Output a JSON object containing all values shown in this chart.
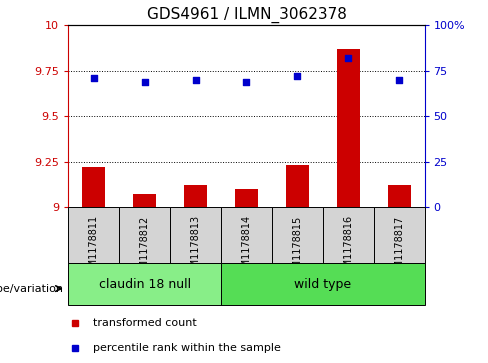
{
  "title": "GDS4961 / ILMN_3062378",
  "samples": [
    "GSM1178811",
    "GSM1178812",
    "GSM1178813",
    "GSM1178814",
    "GSM1178815",
    "GSM1178816",
    "GSM1178817"
  ],
  "transformed_count": [
    9.22,
    9.07,
    9.12,
    9.1,
    9.23,
    9.87,
    9.12
  ],
  "percentile_rank": [
    71,
    69,
    70,
    69,
    72,
    82,
    70
  ],
  "ylim_left": [
    9.0,
    10.0
  ],
  "ylim_right": [
    0,
    100
  ],
  "yticks_left": [
    9.0,
    9.25,
    9.5,
    9.75,
    10.0
  ],
  "yticks_right": [
    0,
    25,
    50,
    75,
    100
  ],
  "ytick_labels_left": [
    "9",
    "9.25",
    "9.5",
    "9.75",
    "10"
  ],
  "ytick_labels_right": [
    "0",
    "25",
    "50",
    "75",
    "100%"
  ],
  "hlines": [
    9.25,
    9.5,
    9.75
  ],
  "bar_color": "#cc0000",
  "scatter_color": "#0000cc",
  "groups": [
    {
      "label": "claudin 18 null",
      "indices": [
        0,
        1,
        2
      ],
      "color": "#88ee88"
    },
    {
      "label": "wild type",
      "indices": [
        3,
        4,
        5,
        6
      ],
      "color": "#55dd55"
    }
  ],
  "grey_color": "#d4d4d4",
  "genotype_label": "genotype/variation",
  "legend_items": [
    {
      "color": "#cc0000",
      "label": "transformed count"
    },
    {
      "color": "#0000cc",
      "label": "percentile rank within the sample"
    }
  ],
  "title_fontsize": 11,
  "tick_fontsize": 8,
  "sample_fontsize": 7,
  "group_label_fontsize": 9,
  "legend_fontsize": 8,
  "genotype_fontsize": 8,
  "bar_width": 0.45,
  "bar_bottom": 9.0
}
